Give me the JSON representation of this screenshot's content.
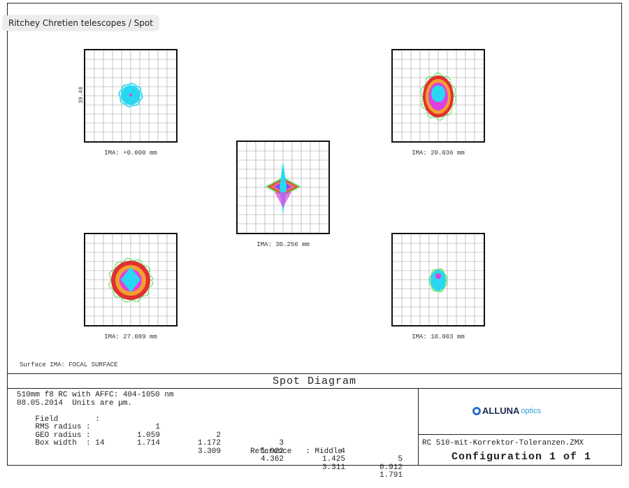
{
  "breadcrumb": "Ritchey Chretien telescopes / Spot",
  "spots": [
    {
      "id": "field-1",
      "ima": "IMA: +0.000 mm",
      "shape": "round-small"
    },
    {
      "id": "field-2",
      "ima": "IMA: 20.036 mm",
      "shape": "oval"
    },
    {
      "id": "field-3",
      "ima": "IMA: 30.256 mm",
      "shape": "star"
    },
    {
      "id": "field-4",
      "ima": "IMA: 27.089 mm",
      "shape": "round-large"
    },
    {
      "id": "field-5",
      "ima": "IMA: 10.003 mm",
      "shape": "round-tiny"
    }
  ],
  "scale_label": "39.40",
  "surface_label": "Surface IMA: FOCAL SURFACE",
  "title": "Spot Diagram",
  "info": {
    "line1": "510mm f8 RC with AFFC: 404-1050 nm",
    "line2": "08.05.2014  Units are µm.",
    "field_label": "Field        :",
    "fields": [
      "1",
      "2",
      "3",
      "4",
      "5"
    ],
    "rms_label": "RMS radius :",
    "rms": [
      "1.059",
      "1.172",
      "1.922",
      "1.425",
      "0.912"
    ],
    "geo_label": "GEO radius :",
    "geo": [
      "1.714",
      "3.309",
      "4.362",
      "3.311",
      "1.791"
    ],
    "box_width": "Box width  : 14",
    "reference": "Reference   : Middle"
  },
  "logo": {
    "brand": "ALLUNA",
    "sub": "optics"
  },
  "filename": "RC 510-mit-Korrektor-Toleranzen.ZMX",
  "configuration": "Configuration 1 of 1",
  "colors": {
    "cyan": "#29d8f0",
    "magenta": "#e040e0",
    "green": "#60e060",
    "red": "#e03030",
    "orange": "#f0a030",
    "blue": "#4060ff"
  }
}
